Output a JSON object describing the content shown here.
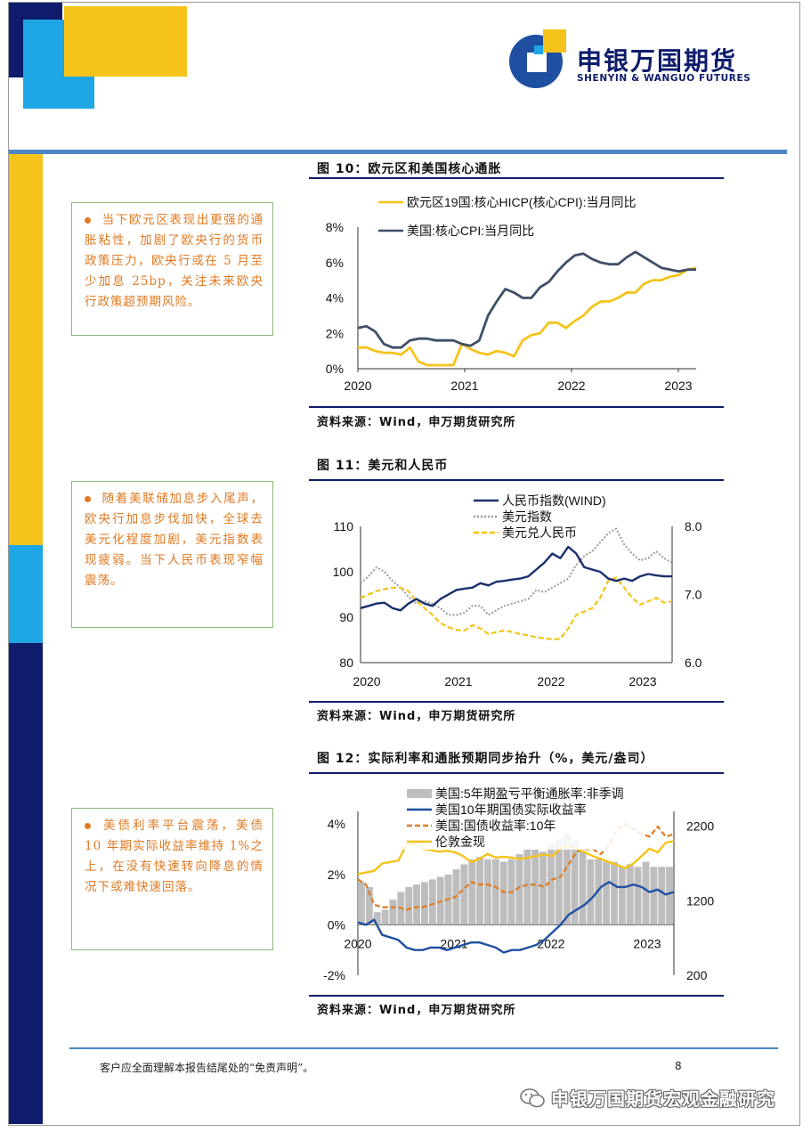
{
  "logo": {
    "name_cn": "申银万国期货",
    "name_en": "SHENYIN & WANGUO FUTURES"
  },
  "colors": {
    "navy": "#0f1c6b",
    "gold": "#f5c31a",
    "skyblue": "#1ea6e5",
    "orange": "#e07a22",
    "blue_series": "#1f4fa0",
    "slate": "#3e4f66"
  },
  "figures": [
    {
      "title": "图 10：欧元区和美国核心通胀",
      "source": "资料来源：Wind，申万期货研究所",
      "note": "当下欧元区表现出更强的通胀粘性，加剧了欧央行的货币政策压力，欧央行或在 5 月至少加息 25bp，关注未来欧央行政策超预期风险。",
      "chart_data": {
        "type": "line",
        "title": "",
        "xlabel": "",
        "ylabel": "",
        "x_ticks": [
          "2020",
          "2021",
          "2022",
          "2023"
        ],
        "y_ticks": [
          "0%",
          "2%",
          "4%",
          "6%",
          "8%"
        ],
        "ylim": [
          0,
          8
        ],
        "legend": "top-left",
        "series": [
          {
            "name": "欧元区19国:核心HICP(核心CPI):当月同比",
            "color": "#f5c31a",
            "values": [
              1.2,
              1.2,
              1.0,
              0.9,
              0.9,
              0.8,
              1.2,
              0.4,
              0.2,
              0.2,
              0.2,
              0.2,
              1.4,
              1.1,
              0.9,
              0.8,
              1.0,
              0.9,
              0.7,
              1.6,
              1.9,
              2.0,
              2.6,
              2.6,
              2.3,
              2.7,
              3.0,
              3.5,
              3.8,
              3.8,
              4.0,
              4.3,
              4.3,
              4.8,
              5.0,
              5.0,
              5.2,
              5.3,
              5.6,
              5.7
            ]
          },
          {
            "name": "美国:核心CPI:当月同比",
            "color": "#3e4f66",
            "values": [
              2.3,
              2.4,
              2.1,
              1.4,
              1.2,
              1.2,
              1.6,
              1.7,
              1.7,
              1.6,
              1.6,
              1.6,
              1.4,
              1.3,
              1.6,
              3.0,
              3.8,
              4.5,
              4.3,
              4.0,
              4.0,
              4.6,
              4.9,
              5.5,
              6.0,
              6.4,
              6.5,
              6.2,
              6.0,
              5.9,
              5.9,
              6.3,
              6.6,
              6.3,
              6.0,
              5.7,
              5.6,
              5.5,
              5.6,
              5.6
            ]
          }
        ]
      }
    },
    {
      "title": "图 11：美元和人民币",
      "source": "资料来源：Wind，申万期货研究所",
      "note": "随着美联储加息步入尾声，欧央行加息步伐加快，全球去美元化程度加剧，美元指数表现疲弱。当下人民币表现窄幅震荡。",
      "chart_data": {
        "type": "line",
        "title": "",
        "xlabel": "",
        "ylabel": "",
        "x_ticks": [
          "2020",
          "2021",
          "2022",
          "2023"
        ],
        "y_left_ticks": [
          "80",
          "90",
          "100",
          "110"
        ],
        "y_right_ticks": [
          "6.0",
          "7.0",
          "8.0"
        ],
        "ylim_left": [
          80,
          110
        ],
        "ylim_right": [
          6.0,
          8.0
        ],
        "legend": "top-center",
        "series": [
          {
            "name": "人民币指数(WIND)",
            "color": "#1a2f6e",
            "style": "solid",
            "axis": "left",
            "values": [
              92.0,
              92.5,
              93.0,
              93.2,
              92.0,
              91.5,
              93.0,
              94.0,
              93.0,
              92.5,
              94.0,
              95.0,
              96.0,
              96.3,
              96.5,
              97.5,
              97.0,
              97.8,
              98.0,
              98.3,
              98.5,
              99.0,
              100.5,
              102.0,
              104.0,
              103.0,
              105.5,
              104.0,
              101.0,
              100.5,
              100.0,
              98.5,
              98.0,
              98.5,
              98.0,
              99.0,
              99.5,
              99.2,
              99.0,
              99.0
            ]
          },
          {
            "name": "美元指数",
            "color": "#9a9a9a",
            "style": "dotted",
            "axis": "left",
            "values": [
              97.5,
              99.0,
              101.0,
              100.0,
              98.0,
              96.5,
              94.5,
              93.0,
              93.5,
              93.0,
              92.0,
              90.5,
              90.5,
              91.0,
              92.5,
              92.5,
              90.5,
              91.5,
              92.5,
              93.0,
              93.5,
              94.0,
              96.0,
              95.5,
              96.5,
              97.5,
              98.5,
              101.5,
              103.5,
              104.5,
              106.5,
              108.5,
              109.5,
              106.0,
              104.0,
              102.5,
              103.0,
              104.5,
              103.0,
              102.0
            ]
          },
          {
            "name": "美元兑人民币",
            "color": "#f5c31a",
            "style": "dashed",
            "axis": "right",
            "values": [
              6.95,
              7.0,
              7.05,
              7.08,
              7.1,
              7.1,
              7.05,
              6.9,
              6.8,
              6.7,
              6.58,
              6.52,
              6.48,
              6.47,
              6.55,
              6.5,
              6.42,
              6.45,
              6.47,
              6.45,
              6.42,
              6.4,
              6.37,
              6.36,
              6.34,
              6.35,
              6.5,
              6.7,
              6.75,
              6.8,
              6.95,
              7.2,
              7.25,
              7.1,
              6.95,
              6.85,
              6.9,
              6.95,
              6.88,
              6.9
            ]
          }
        ]
      }
    },
    {
      "title": "图 12：实际利率和通胀预期同步抬升（%，美元/盎司）",
      "source": "资料来源：Wind，申万期货研究所",
      "note": "美债利率平台震荡，美债 10 年期实际收益率维持 1%之上，在没有快速转向降息的情况下或难快速回落。",
      "chart_data": {
        "type": "line",
        "title": "",
        "xlabel": "",
        "ylabel": "",
        "x_ticks": [
          "2020",
          "2021",
          "2022",
          "2023"
        ],
        "y_left_ticks": [
          "-2%",
          "0%",
          "2%",
          "4%"
        ],
        "y_right_ticks": [
          "200",
          "1200",
          "2200"
        ],
        "ylim_left": [
          -2,
          4.5
        ],
        "ylim_right": [
          200,
          2400
        ],
        "legend": "top-center",
        "series": [
          {
            "name": "美国:5年期盈亏平衡通胀率:非季调",
            "color": "#bdbdbd",
            "style": "bar",
            "axis": "left",
            "values": [
              1.7,
              1.5,
              0.5,
              0.6,
              1.0,
              1.3,
              1.5,
              1.6,
              1.7,
              1.8,
              1.9,
              2.0,
              2.2,
              2.4,
              2.6,
              2.7,
              2.6,
              2.6,
              2.5,
              2.6,
              2.8,
              3.0,
              3.0,
              2.9,
              3.2,
              3.4,
              3.6,
              3.3,
              2.9,
              2.6,
              2.6,
              2.5,
              2.5,
              2.3,
              2.4,
              2.3,
              2.5,
              2.3,
              2.3,
              2.3
            ]
          },
          {
            "name": "美国10年期国债实际收益率",
            "color": "#1f4fa0",
            "style": "solid",
            "axis": "left",
            "values": [
              0.1,
              0.0,
              0.2,
              -0.4,
              -0.5,
              -0.6,
              -0.9,
              -1.0,
              -1.0,
              -0.9,
              -0.9,
              -1.0,
              -0.9,
              -0.8,
              -0.7,
              -0.7,
              -0.8,
              -0.9,
              -1.1,
              -1.0,
              -1.0,
              -0.9,
              -0.8,
              -0.6,
              -0.3,
              0.0,
              0.4,
              0.6,
              0.8,
              1.1,
              1.5,
              1.7,
              1.5,
              1.5,
              1.6,
              1.5,
              1.3,
              1.4,
              1.2,
              1.3
            ]
          },
          {
            "name": "美国:国债收益率:10年",
            "color": "#e07a22",
            "style": "dashed",
            "axis": "left",
            "values": [
              1.8,
              1.6,
              0.8,
              0.7,
              0.7,
              0.7,
              0.6,
              0.7,
              0.7,
              0.8,
              0.9,
              1.0,
              1.1,
              1.4,
              1.7,
              1.6,
              1.6,
              1.5,
              1.3,
              1.3,
              1.5,
              1.6,
              1.6,
              1.5,
              1.8,
              1.9,
              2.4,
              2.9,
              3.0,
              3.0,
              2.8,
              3.2,
              3.8,
              4.0,
              3.8,
              3.6,
              3.5,
              3.9,
              3.5,
              3.6
            ]
          },
          {
            "name": "伦敦金现",
            "color": "#f5c31a",
            "style": "solid",
            "axis": "right",
            "values": [
              1560,
              1580,
              1600,
              1700,
              1720,
              1740,
              1950,
              1960,
              1900,
              1880,
              1860,
              1870,
              1850,
              1800,
              1720,
              1760,
              1830,
              1780,
              1790,
              1780,
              1760,
              1780,
              1800,
              1820,
              1800,
              1900,
              1950,
              1900,
              1850,
              1800,
              1760,
              1720,
              1680,
              1640,
              1700,
              1800,
              1900,
              1850,
              1980,
              2000
            ]
          }
        ]
      }
    }
  ],
  "footer": {
    "disclaimer": "客户应全面理解本报告结尾处的“免责声明”。",
    "page": "8"
  },
  "watermark": "申银万国期货宏观金融研究"
}
